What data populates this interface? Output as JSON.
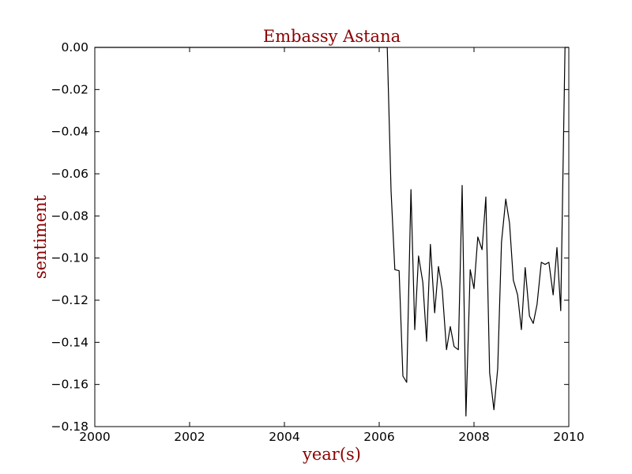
{
  "colors": {
    "title": "#8b0000",
    "axis_label": "#8b0000",
    "line": "#000000",
    "axes": "#000000"
  },
  "chart_data": {
    "type": "line",
    "title": "Embassy Astana",
    "xlabel": "year(s)",
    "ylabel": "sentiment",
    "xlim": [
      2000,
      2010
    ],
    "ylim": [
      -0.18,
      0.0
    ],
    "grid": false,
    "x_ticks": [
      2000,
      2002,
      2004,
      2006,
      2008,
      2010
    ],
    "x_tick_labels": [
      "2000",
      "2002",
      "2004",
      "2006",
      "2008",
      "2010"
    ],
    "y_ticks": [
      0.0,
      -0.02,
      -0.04,
      -0.06,
      -0.08,
      -0.1,
      -0.12,
      -0.14,
      -0.16,
      -0.18
    ],
    "y_tick_labels": [
      "0.00",
      "−0.02",
      "−0.04",
      "−0.06",
      "−0.08",
      "−0.10",
      "−0.12",
      "−0.14",
      "−0.16",
      "−0.18"
    ],
    "series": [
      {
        "x": [
          2000.0,
          2006.17,
          2006.25,
          2006.33,
          2006.42,
          2006.5,
          2006.58,
          2006.67,
          2006.75,
          2006.83,
          2006.92,
          2007.0,
          2007.08,
          2007.17,
          2007.25,
          2007.33,
          2007.42,
          2007.5,
          2007.58,
          2007.67,
          2007.75,
          2007.83,
          2007.92,
          2008.0,
          2008.08,
          2008.17,
          2008.25,
          2008.33,
          2008.42,
          2008.5,
          2008.58,
          2008.67,
          2008.75,
          2008.83,
          2008.92,
          2009.0,
          2009.08,
          2009.17,
          2009.25,
          2009.33,
          2009.42,
          2009.5,
          2009.58,
          2009.67,
          2009.75,
          2009.83,
          2009.92,
          2010.0
        ],
        "y": [
          0.0,
          0.0,
          -0.068,
          -0.1055,
          -0.106,
          -0.156,
          -0.159,
          -0.0675,
          -0.134,
          -0.099,
          -0.1115,
          -0.1395,
          -0.0935,
          -0.126,
          -0.104,
          -0.115,
          -0.1435,
          -0.1325,
          -0.142,
          -0.1435,
          -0.0655,
          -0.175,
          -0.1055,
          -0.1145,
          -0.09,
          -0.096,
          -0.071,
          -0.1545,
          -0.172,
          -0.1525,
          -0.0925,
          -0.072,
          -0.0835,
          -0.1105,
          -0.1175,
          -0.134,
          -0.1045,
          -0.1275,
          -0.131,
          -0.122,
          -0.102,
          -0.103,
          -0.102,
          -0.1175,
          -0.095,
          -0.125,
          0.0,
          0.0
        ]
      }
    ]
  }
}
